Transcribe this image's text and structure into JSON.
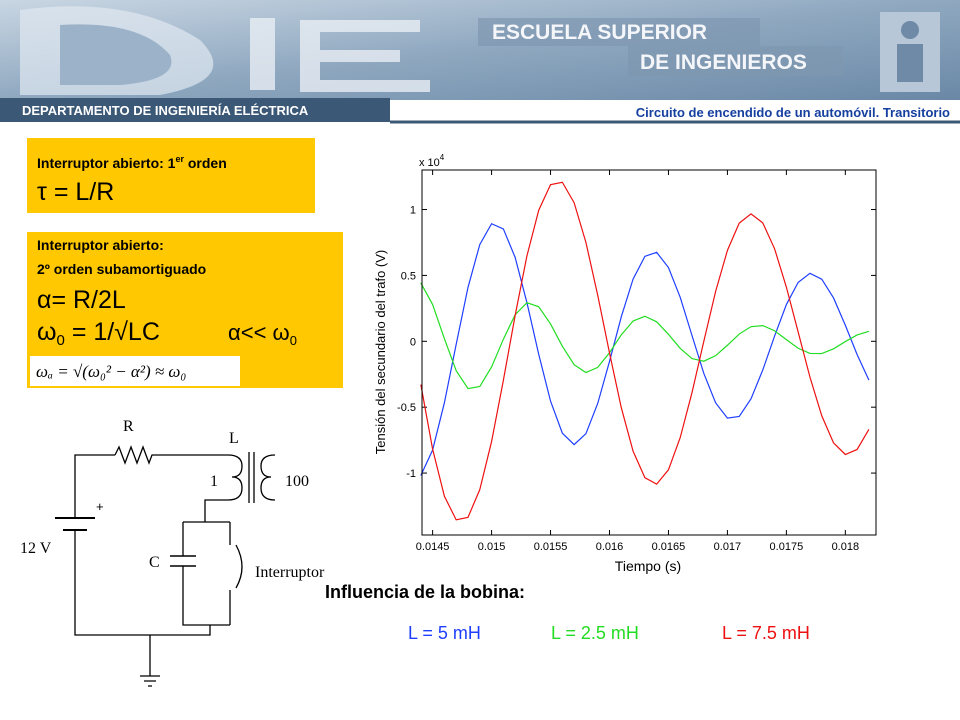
{
  "header": {
    "department": "DEPARTAMENTO DE INGENIERÍA ELÉCTRICA",
    "school_1": "ESCUELA SUPERIOR",
    "school_2": "DE INGENIEROS",
    "subtitle": "Circuito de encendido  de un automóvil.  Transitorio"
  },
  "boxes": {
    "first": {
      "heading": "Interruptor abierto: 1",
      "heading_sup": "er",
      "heading_end": " orden",
      "formula": "τ = L/R"
    },
    "second": {
      "line1": "Interruptor abierto:",
      "line2": "2º orden subamortiguado",
      "alpha": "α= R/2L",
      "omega": "ω",
      "omega_sub": "0",
      "omega_rest": " = 1/√LC",
      "comparison": "α<< ω",
      "comparison_sub": "0",
      "damped": "ωₐ = √(ω₀² − α²) ≈ ω₀"
    }
  },
  "circuit": {
    "R": "R",
    "L": "L",
    "n1": "1",
    "n2": "100",
    "source": "12 V",
    "C": "C",
    "switch": "Interruptor"
  },
  "chart_data": {
    "type": "line",
    "xlabel": "Tiempo (s)",
    "ylabel": "Tensión del secundario del trafo (V)",
    "y_multiplier": "x 10",
    "y_multiplier_exp": "4",
    "legend_title": "Influencia de la bobina:",
    "xlim": [
      0.01441,
      0.01826
    ],
    "ylim": [
      -1.47,
      1.3
    ],
    "xticks": [
      0.0145,
      0.015,
      0.0155,
      0.016,
      0.0165,
      0.017,
      0.0175,
      0.018
    ],
    "yticks": [
      -1,
      -0.5,
      0,
      0.5,
      1
    ],
    "x": [
      0.0144,
      0.0145,
      0.0146,
      0.0147,
      0.0148,
      0.0149,
      0.015,
      0.0151,
      0.0152,
      0.0153,
      0.0154,
      0.0155,
      0.0156,
      0.0157,
      0.0158,
      0.0159,
      0.016,
      0.0161,
      0.0162,
      0.0163,
      0.0164,
      0.0165,
      0.0166,
      0.0167,
      0.0168,
      0.0169,
      0.017,
      0.0171,
      0.0172,
      0.0173,
      0.0174,
      0.0175,
      0.0176,
      0.0177,
      0.0178,
      0.0179,
      0.018,
      0.0181,
      0.0182
    ],
    "series": [
      {
        "name": "L =  5 mH",
        "color": "#1f3fff",
        "values": [
          -1.018,
          -0.825,
          -0.466,
          -0.022,
          0.409,
          0.734,
          0.892,
          0.853,
          0.636,
          0.293,
          -0.099,
          -0.454,
          -0.697,
          -0.784,
          -0.701,
          -0.472,
          -0.153,
          0.186,
          0.472,
          0.645,
          0.675,
          0.56,
          0.333,
          0.043,
          -0.244,
          -0.467,
          -0.583,
          -0.57,
          -0.437,
          -0.217,
          0.04,
          0.279,
          0.447,
          0.516,
          0.471,
          0.329,
          0.122,
          -0.101,
          -0.295
        ]
      },
      {
        "name": "L = 2.5 mH",
        "color": "#22dd22",
        "values": [
          0.443,
          0.279,
          0.02,
          -0.223,
          -0.359,
          -0.343,
          -0.195,
          0.016,
          0.202,
          0.293,
          0.262,
          0.132,
          -0.037,
          -0.178,
          -0.237,
          -0.198,
          -0.087,
          0.049,
          0.154,
          0.19,
          0.148,
          0.053,
          -0.054,
          -0.131,
          -0.151,
          -0.109,
          -0.03,
          0.055,
          0.111,
          0.119,
          0.08,
          0.013,
          -0.053,
          -0.092,
          -0.093,
          -0.057,
          -0.002,
          0.048,
          0.076
        ]
      },
      {
        "name": "L = 7.5 mH",
        "color": "#ee1111",
        "values": [
          -0.329,
          -0.818,
          -1.176,
          -1.355,
          -1.336,
          -1.126,
          -0.761,
          -0.296,
          0.197,
          0.649,
          0.995,
          1.189,
          1.207,
          1.052,
          0.751,
          0.35,
          -0.088,
          -0.504,
          -0.834,
          -1.035,
          -1.084,
          -0.975,
          -0.73,
          -0.388,
          0.0,
          0.379,
          0.69,
          0.897,
          0.967,
          0.899,
          0.702,
          0.411,
          0.07,
          -0.272,
          -0.565,
          -0.771,
          -0.859,
          -0.821,
          -0.668
        ]
      }
    ]
  }
}
